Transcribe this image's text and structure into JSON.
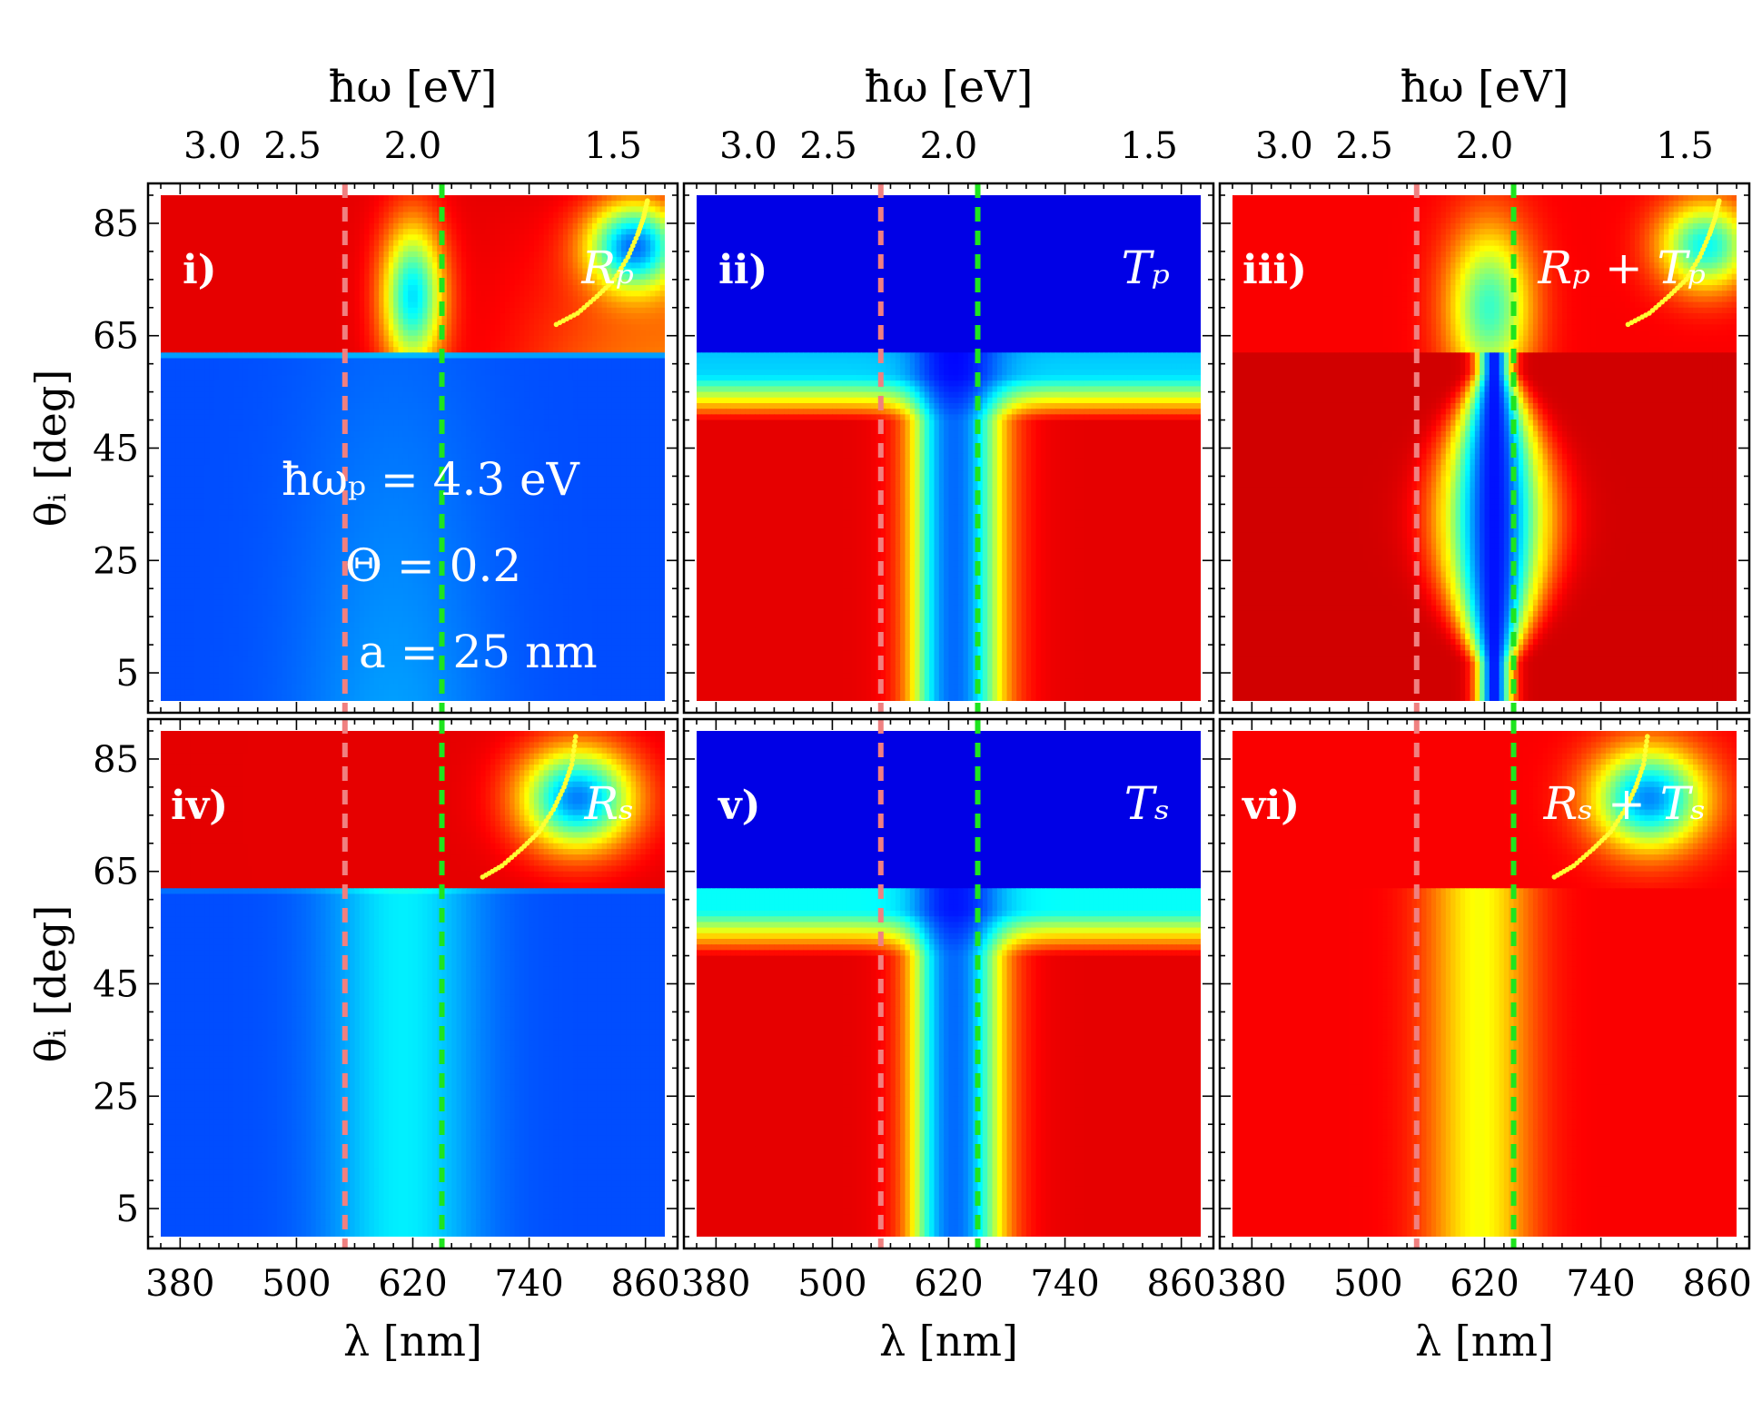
{
  "figure": {
    "top_axis_label": "ħω [eV]",
    "top_ticks": [
      "3.0",
      "2.5",
      "2.0",
      "1.5"
    ],
    "top_tick_wavelengths_nm": [
      413.3,
      495.9,
      619.9,
      826.6
    ],
    "x_label": "λ [nm]",
    "y_label": "θᵢ [deg]",
    "x_ticks": [
      380,
      500,
      620,
      740,
      860
    ],
    "y_ticks": [
      5,
      25,
      45,
      65,
      85
    ],
    "xlim": [
      360,
      880
    ],
    "ylim": [
      0,
      90
    ],
    "colors": {
      "pink_line": "#f08080",
      "green_line": "#1ee51e",
      "yellow_dots": "#ffff33"
    },
    "reference_lines_nm": [
      550,
      650
    ],
    "parameters": [
      "ħωₚ = 4.3 eV",
      "Θ = 0.2",
      "a = 25 nm"
    ]
  },
  "chart_data": [
    {
      "type": "heatmap",
      "panel": "i)",
      "label": "Rₚ",
      "colormap": "jet",
      "xlabel": "",
      "ylabel": "θᵢ [deg]",
      "xlim": [
        360,
        880
      ],
      "ylim": [
        0,
        90
      ],
      "description_values": {
        "critical_angle_deg": 62
      },
      "dotted_curve": {
        "x": [
          768,
          790,
          810,
          828,
          842,
          852,
          858,
          862
        ],
        "y": [
          67,
          69,
          72,
          75,
          79,
          83,
          86,
          89
        ]
      }
    },
    {
      "type": "heatmap",
      "panel": "ii)",
      "label": "Tₚ",
      "colormap": "jet",
      "xlabel": "",
      "ylabel": "",
      "xlim": [
        360,
        880
      ],
      "ylim": [
        0,
        90
      ],
      "description_values": {
        "critical_angle_deg": 62
      }
    },
    {
      "type": "heatmap",
      "panel": "iii)",
      "label": "Rₚ + Tₚ",
      "colormap": "jet",
      "xlabel": "",
      "ylabel": "",
      "xlim": [
        360,
        880
      ],
      "ylim": [
        0,
        90
      ],
      "description_values": {
        "critical_angle_deg": 62
      },
      "dotted_curve": {
        "x": [
          768,
          790,
          810,
          828,
          842,
          852,
          858,
          862
        ],
        "y": [
          67,
          69,
          72,
          75,
          79,
          83,
          86,
          89
        ]
      }
    },
    {
      "type": "heatmap",
      "panel": "iv)",
      "label": "Rₛ",
      "colormap": "jet",
      "xlabel": "λ [nm]",
      "ylabel": "θᵢ [deg]",
      "xlim": [
        360,
        880
      ],
      "ylim": [
        0,
        90
      ],
      "description_values": {
        "critical_angle_deg": 62
      },
      "dotted_curve": {
        "x": [
          692,
          712,
          732,
          750,
          765,
          776,
          784,
          788
        ],
        "y": [
          64,
          66,
          69,
          72,
          76,
          80,
          84,
          89
        ]
      }
    },
    {
      "type": "heatmap",
      "panel": "v)",
      "label": "Tₛ",
      "colormap": "jet",
      "xlabel": "λ [nm]",
      "ylabel": "",
      "xlim": [
        360,
        880
      ],
      "ylim": [
        0,
        90
      ],
      "description_values": {
        "critical_angle_deg": 62
      }
    },
    {
      "type": "heatmap",
      "panel": "vi)",
      "label": "Rₛ + Tₛ",
      "colormap": "jet",
      "xlabel": "λ [nm]",
      "ylabel": "",
      "xlim": [
        360,
        880
      ],
      "ylim": [
        0,
        90
      ],
      "description_values": {
        "critical_angle_deg": 62
      },
      "dotted_curve": {
        "x": [
          692,
          712,
          732,
          750,
          765,
          776,
          784,
          788
        ],
        "y": [
          64,
          66,
          69,
          72,
          76,
          80,
          84,
          89
        ]
      }
    }
  ]
}
